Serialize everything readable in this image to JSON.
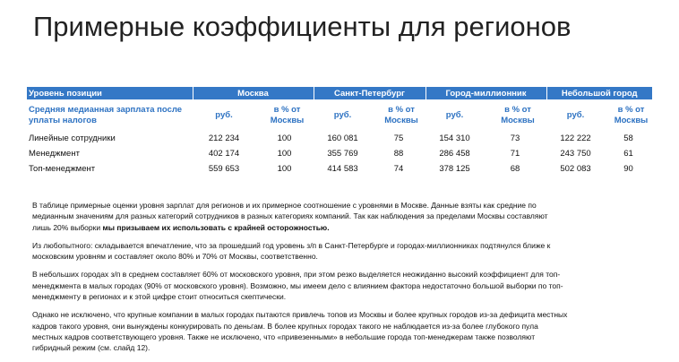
{
  "title": "Примерные коэффициенты для регионов",
  "table": {
    "header": [
      "Уровень позиции",
      "Москва",
      "Санкт-Петербург",
      "Город-миллионник",
      "Небольшой город"
    ],
    "subheader": [
      "Средняя медианная зарплата после уплаты налогов",
      "руб.",
      "в % от Москвы",
      "руб.",
      "в % от Москвы",
      "руб.",
      "в % от Москвы",
      "руб.",
      "в % от Москвы"
    ],
    "rows": [
      [
        "Линейные сотрудники",
        "212 234",
        100,
        "160 081",
        75,
        "154 310",
        73,
        "122 222",
        58
      ],
      [
        "Менеджмент",
        "402 174",
        100,
        "355 769",
        88,
        "286 458",
        71,
        "243 750",
        61
      ],
      [
        "Топ-менеджмент",
        "559 653",
        100,
        "414 583",
        74,
        "378 125",
        68,
        "502 083",
        90
      ]
    ]
  },
  "paragraphs": [
    {
      "lines": [
        "В таблице примерные оценки уровня зарплат для регионов и их примерное соотношение с уровнями в Москве. Данные взяты как средние по",
        "медианным значениям для разных категорий сотрудников в разных категориях компаний. Так как наблюдения за пределами Москвы составляют",
        "лишь 20% выборки "
      ],
      "bold": "мы призываем их использовать с крайней осторожностью."
    },
    {
      "lines": [
        "Из любопытного: складывается впечатление, что за прошедший год уровень з/п в Санкт-Петербурге и городах-миллионниках подтянулся ближе к",
        "московским уровням и составляет около 80% и 70% от Москвы, соответственно."
      ]
    },
    {
      "lines": [
        "В небольших городах з/п в среднем составляет 60% от московского уровня, при этом резко выделяется неожиданно высокий коэффициент для топ-",
        "менеджмента в малых городах (90% от московского уровня). Возможно, мы имеем дело с влиянием фактора недостаточно большой выборки по топ-",
        "менеджменту в регионах и к этой цифре стоит относиться скептически."
      ]
    },
    {
      "lines": [
        "Однако не исключено, что крупные компании в малых городах пытаются привлечь топов из Москвы и более крупных городов из-за дефицита местных",
        "кадров такого уровня, они вынуждены конкурировать по деньгам. В более крупных городах такого не наблюдается из-за более глубокого пула",
        "местных кадров соответствующего уровня. Также не исключено, что «привезенными» в небольшие города топ-менеджерам также позволяют",
        "гибридный режим (см. слайд 12)."
      ]
    }
  ]
}
